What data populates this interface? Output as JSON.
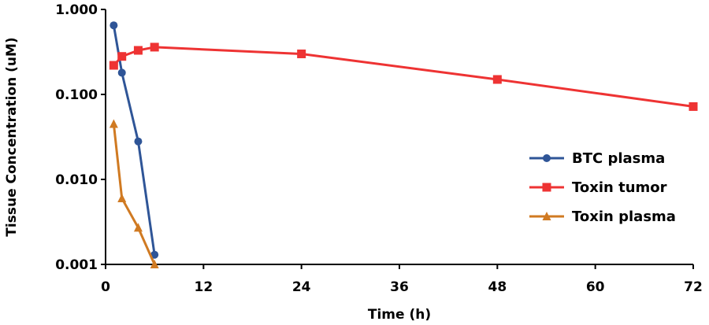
{
  "chart_data": {
    "type": "line",
    "title": "",
    "xlabel": "Time (h)",
    "ylabel": "Tissue Concentration (uM)",
    "yscale": "log",
    "xlim": [
      0,
      72
    ],
    "ylim": [
      0.001,
      1.0
    ],
    "xticks": [
      0,
      12,
      24,
      36,
      48,
      60,
      72
    ],
    "xtick_labels": [
      "0",
      "12",
      "24",
      "36",
      "48",
      "60",
      "72"
    ],
    "yticks": [
      0.001,
      0.01,
      0.1,
      1.0
    ],
    "ytick_labels": [
      "0.001",
      "0.010",
      "0.100",
      "1.000"
    ],
    "grid": false,
    "legend_position": "right",
    "series": [
      {
        "name": "BTC plasma",
        "color": "#2f5597",
        "marker": "circle",
        "x": [
          1,
          2,
          4,
          6
        ],
        "y": [
          0.65,
          0.18,
          0.028,
          0.0013
        ]
      },
      {
        "name": "Toxin tumor",
        "color": "#ee3333",
        "marker": "square",
        "x": [
          1,
          2,
          4,
          6,
          24,
          48,
          72
        ],
        "y": [
          0.22,
          0.28,
          0.33,
          0.36,
          0.3,
          0.15,
          0.072
        ]
      },
      {
        "name": "Toxin plasma",
        "color": "#d07a22",
        "marker": "triangle",
        "x": [
          1,
          2,
          4,
          6
        ],
        "y": [
          0.045,
          0.006,
          0.0027,
          0.001
        ]
      }
    ]
  }
}
